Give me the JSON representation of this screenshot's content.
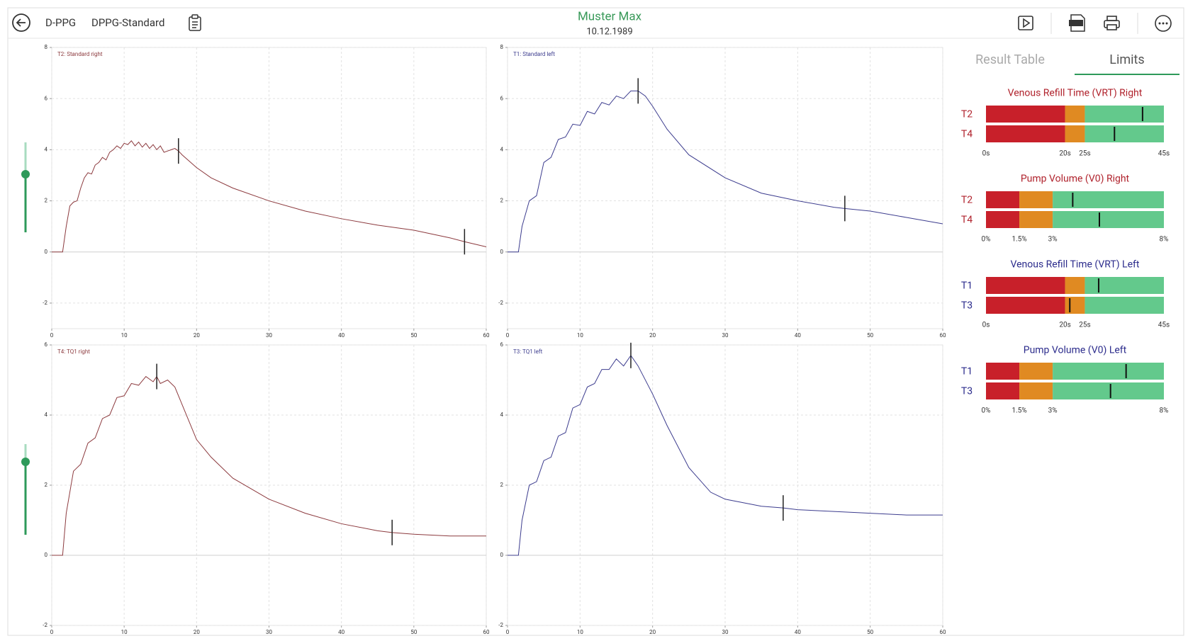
{
  "header": {
    "app": "D-PPG",
    "protocol": "DPPG-Standard",
    "patient": "Muster Max",
    "birth_date": "10.12.1989"
  },
  "tabs": {
    "items": [
      "Result Table",
      "Limits"
    ],
    "active": 1
  },
  "chart_data": [
    {
      "type": "line",
      "title": "T2: Standard right",
      "xlim": [
        0,
        60
      ],
      "ylim": [
        -3,
        8
      ],
      "xticks": [
        0,
        10,
        20,
        30,
        40,
        50,
        60
      ],
      "yticks": [
        -2,
        0,
        2,
        4,
        6,
        8
      ],
      "grid": true,
      "x": [
        0,
        1.5,
        2,
        2.5,
        3,
        3.5,
        4,
        4.5,
        5,
        5.5,
        6,
        6.5,
        7,
        7.5,
        8,
        8.5,
        9,
        9.5,
        10,
        10.5,
        11,
        11.5,
        12,
        12.5,
        13,
        13.5,
        14,
        14.5,
        15,
        15.5,
        16,
        16.5,
        17,
        17.5,
        18,
        20,
        22,
        25,
        30,
        35,
        40,
        45,
        50,
        55,
        57,
        60
      ],
      "series": [
        {
          "color": "#8c3a3e",
          "values": [
            0,
            0,
            1.0,
            1.8,
            1.95,
            2.0,
            2.5,
            2.9,
            3.1,
            3.05,
            3.4,
            3.5,
            3.7,
            3.6,
            3.9,
            4.0,
            4.15,
            4.05,
            4.25,
            4.2,
            4.35,
            4.15,
            4.3,
            4.1,
            4.25,
            4.05,
            4.2,
            4.0,
            4.15,
            3.9,
            3.95,
            4.0,
            4.05,
            3.95,
            3.8,
            3.3,
            2.9,
            2.5,
            2.0,
            1.6,
            1.3,
            1.05,
            0.85,
            0.55,
            0.4,
            0.2
          ]
        }
      ],
      "marker_x": [
        17.5,
        57
      ]
    },
    {
      "type": "line",
      "title": "T1: Standard left",
      "xlim": [
        0,
        60
      ],
      "ylim": [
        -3,
        8
      ],
      "xticks": [
        0,
        10,
        20,
        30,
        40,
        50,
        60
      ],
      "yticks": [
        -2,
        0,
        2,
        4,
        6,
        8
      ],
      "grid": true,
      "x": [
        0,
        1.5,
        2,
        3,
        4,
        5,
        6,
        7,
        8,
        9,
        10,
        11,
        12,
        13,
        14,
        15,
        16,
        17,
        18,
        19,
        20,
        22,
        25,
        30,
        35,
        40,
        45,
        46.5,
        50,
        55,
        60
      ],
      "series": [
        {
          "color": "#3c3c8e",
          "values": [
            0,
            0,
            1.0,
            2.0,
            2.2,
            3.5,
            3.7,
            4.4,
            4.5,
            5.0,
            4.95,
            5.5,
            5.4,
            5.85,
            5.75,
            6.1,
            6.0,
            6.3,
            6.3,
            6.1,
            5.7,
            4.8,
            3.8,
            2.9,
            2.3,
            2.0,
            1.75,
            1.7,
            1.6,
            1.35,
            1.1
          ]
        }
      ],
      "marker_x": [
        18,
        46.5
      ]
    },
    {
      "type": "line",
      "title": "T4: TQ1 right",
      "xlim": [
        0,
        60
      ],
      "ylim": [
        -2,
        6
      ],
      "xticks": [
        0,
        10,
        20,
        30,
        40,
        50,
        60
      ],
      "yticks": [
        -2,
        0,
        2,
        4,
        6
      ],
      "grid": true,
      "x": [
        0,
        1.5,
        2,
        3,
        4,
        5,
        6,
        7,
        8,
        9,
        10,
        11,
        12,
        13,
        14,
        14.5,
        15,
        16,
        17,
        18,
        20,
        22,
        25,
        30,
        35,
        40,
        45,
        47,
        50,
        55,
        60
      ],
      "series": [
        {
          "color": "#8c3a3e",
          "values": [
            0,
            0,
            1.2,
            2.4,
            2.6,
            3.2,
            3.35,
            3.9,
            4.0,
            4.5,
            4.55,
            4.9,
            4.85,
            5.1,
            4.95,
            5.1,
            4.9,
            5.0,
            4.8,
            4.3,
            3.3,
            2.8,
            2.2,
            1.6,
            1.2,
            0.9,
            0.7,
            0.65,
            0.6,
            0.55,
            0.55
          ]
        }
      ],
      "marker_x": [
        14.5,
        47
      ]
    },
    {
      "type": "line",
      "title": "T3: TQ1 left",
      "xlim": [
        0,
        60
      ],
      "ylim": [
        -2,
        6
      ],
      "xticks": [
        0,
        10,
        20,
        30,
        40,
        50,
        60
      ],
      "yticks": [
        -2,
        0,
        2,
        4,
        6
      ],
      "grid": true,
      "x": [
        0,
        1.5,
        2,
        3,
        4,
        5,
        6,
        7,
        8,
        9,
        10,
        11,
        12,
        13,
        14,
        15,
        16,
        17,
        18,
        20,
        22,
        25,
        28,
        30,
        35,
        38,
        40,
        45,
        50,
        55,
        60
      ],
      "series": [
        {
          "color": "#3c3c8e",
          "values": [
            0,
            0,
            1.0,
            2.0,
            2.1,
            2.7,
            2.8,
            3.4,
            3.5,
            4.2,
            4.3,
            4.8,
            4.9,
            5.3,
            5.3,
            5.6,
            5.4,
            5.7,
            5.4,
            4.6,
            3.7,
            2.5,
            1.8,
            1.6,
            1.4,
            1.35,
            1.3,
            1.25,
            1.2,
            1.15,
            1.15
          ]
        }
      ],
      "marker_x": [
        17,
        38
      ]
    }
  ],
  "limits": {
    "zone_colors": [
      "#c8202a",
      "#e08a22",
      "#63c98c"
    ],
    "groups": [
      {
        "title": "Venous Refill Time (VRT) Right",
        "color": "#b0222c",
        "ticks": [
          {
            "value": 0,
            "label": "0s"
          },
          {
            "value": 20,
            "label": "20s"
          },
          {
            "value": 25,
            "label": "25s"
          },
          {
            "value": 45,
            "label": "45s"
          }
        ],
        "rows": [
          {
            "label": "T2",
            "value": 39.6
          },
          {
            "label": "T4",
            "value": 32.5
          }
        ]
      },
      {
        "title": "Pump Volume (V0) Right",
        "color": "#b0222c",
        "ticks": [
          {
            "value": 0,
            "label": "0%"
          },
          {
            "value": 1.5,
            "label": "1.5%"
          },
          {
            "value": 3,
            "label": "3%"
          },
          {
            "value": 8,
            "label": "8%"
          }
        ],
        "rows": [
          {
            "label": "T2",
            "value": 3.9
          },
          {
            "label": "T4",
            "value": 5.1
          }
        ]
      },
      {
        "title": "Venous Refill Time (VRT) Left",
        "color": "#2c2c8c",
        "ticks": [
          {
            "value": 0,
            "label": "0s"
          },
          {
            "value": 20,
            "label": "20s"
          },
          {
            "value": 25,
            "label": "25s"
          },
          {
            "value": 45,
            "label": "45s"
          }
        ],
        "rows": [
          {
            "label": "T1",
            "value": 28.5
          },
          {
            "label": "T3",
            "value": 21.2
          }
        ]
      },
      {
        "title": "Pump Volume (V0) Left",
        "color": "#2c2c8c",
        "ticks": [
          {
            "value": 0,
            "label": "0%"
          },
          {
            "value": 1.5,
            "label": "1.5%"
          },
          {
            "value": 3,
            "label": "3%"
          },
          {
            "value": 8,
            "label": "8%"
          }
        ],
        "rows": [
          {
            "label": "T1",
            "value": 6.3
          },
          {
            "label": "T3",
            "value": 5.6
          }
        ]
      }
    ]
  }
}
